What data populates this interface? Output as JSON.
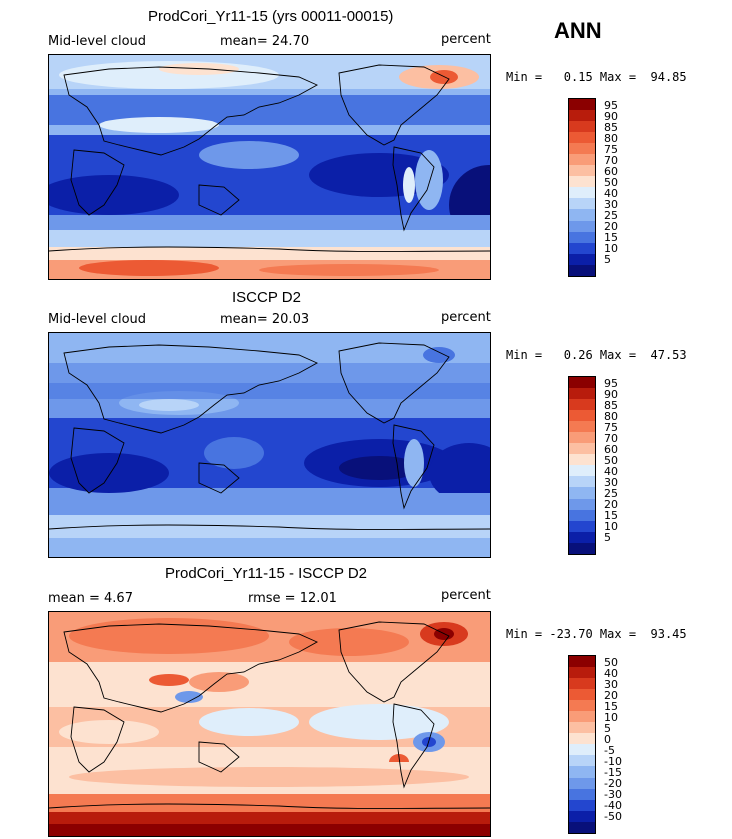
{
  "season": "ANN",
  "panels": [
    {
      "title": "ProdCori_Yr11-15 (yrs 00011-00015)",
      "left_label": "Mid-level cloud",
      "mid_label": "mean=  24.70",
      "right_label": "percent",
      "minmax": "Min =   0.15 Max =  94.85",
      "colorbar_ticks": [
        "95",
        "90",
        "85",
        "80",
        "75",
        "70",
        "60",
        "50",
        "40",
        "30",
        "25",
        "20",
        "15",
        "10",
        "5"
      ]
    },
    {
      "title": "ISCCP D2",
      "left_label": "Mid-level cloud",
      "mid_label": "mean=  20.03",
      "right_label": "percent",
      "minmax": "Min =   0.26 Max =  47.53",
      "colorbar_ticks": [
        "95",
        "90",
        "85",
        "80",
        "75",
        "70",
        "60",
        "50",
        "40",
        "30",
        "25",
        "20",
        "15",
        "10",
        "5"
      ]
    },
    {
      "title": "ProdCori_Yr11-15 - ISCCP D2",
      "left_label": "mean =   4.67",
      "mid_label": "rmse =  12.01",
      "right_label": "percent",
      "minmax": "Min = -23.70 Max =  93.45",
      "colorbar_ticks": [
        "50",
        "40",
        "30",
        "20",
        "15",
        "10",
        "5",
        "0",
        "-5",
        "-10",
        "-15",
        "-20",
        "-30",
        "-40",
        "-50"
      ]
    }
  ],
  "colors": {
    "scale": [
      "#8b0000",
      "#b81c0c",
      "#d83a1e",
      "#ec5a34",
      "#f47a52",
      "#f99c78",
      "#fcbfa2",
      "#fde2d0",
      "#dfeefb",
      "#b8d4f8",
      "#8fb6f2",
      "#6e98ea",
      "#4874e0",
      "#2346cf",
      "#0b1fa8",
      "#08107a"
    ]
  }
}
